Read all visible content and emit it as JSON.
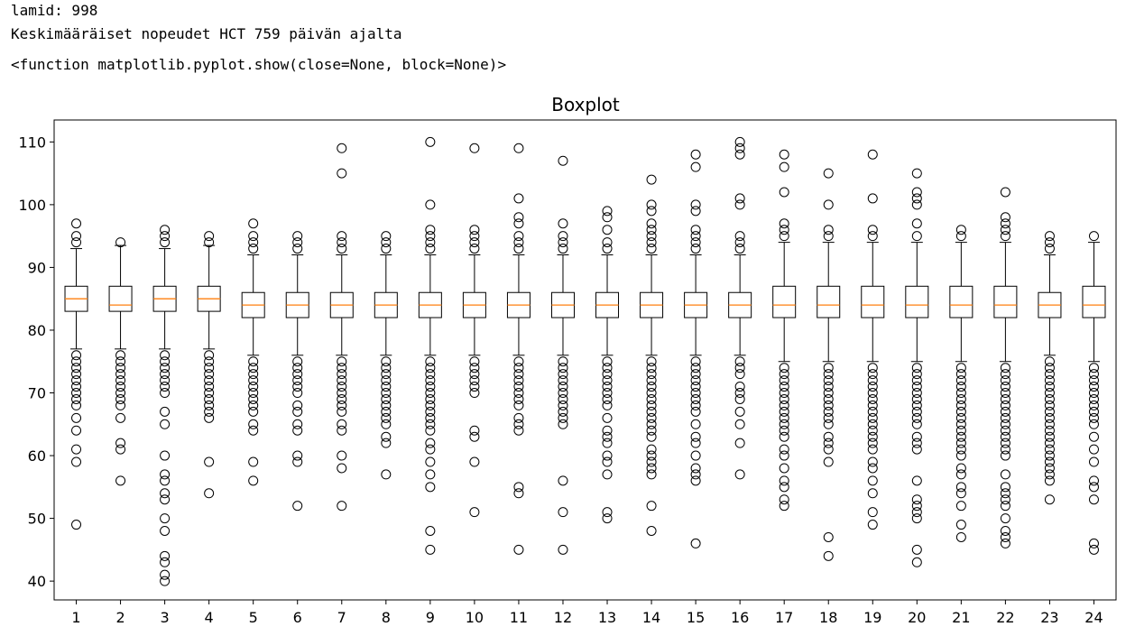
{
  "output": {
    "line1": "lamid: 998",
    "line2": "Keskimääräiset nopeudet HCT 759 päivän ajalta",
    "line3": "<function matplotlib.pyplot.show(close=None, block=None)>"
  },
  "colors": {
    "median": "#ff7f0e",
    "box": "#000000",
    "flier": "#000000"
  },
  "chart_data": {
    "type": "boxplot",
    "title": "Boxplot",
    "xlabel": "",
    "ylabel": "",
    "ylim": [
      37,
      113.5
    ],
    "yticks": [
      40,
      50,
      60,
      70,
      80,
      90,
      100,
      110
    ],
    "grid": false,
    "categories": [
      "1",
      "2",
      "3",
      "4",
      "5",
      "6",
      "7",
      "8",
      "9",
      "10",
      "11",
      "12",
      "13",
      "14",
      "15",
      "16",
      "17",
      "18",
      "19",
      "20",
      "21",
      "22",
      "23",
      "24"
    ],
    "boxes": [
      {
        "q1": 83,
        "median": 85,
        "q3": 87,
        "whislo": 77,
        "whishi": 93,
        "fliers": [
          97,
          95,
          94,
          76,
          75,
          74,
          73,
          72,
          71,
          70,
          69,
          68,
          66,
          64,
          61,
          59,
          49
        ]
      },
      {
        "q1": 83,
        "median": 84,
        "q3": 87,
        "whislo": 77,
        "whishi": 93.5,
        "fliers": [
          94,
          76,
          75,
          74,
          73,
          72,
          71,
          70,
          69,
          68,
          66,
          62,
          61,
          56
        ]
      },
      {
        "q1": 83,
        "median": 85,
        "q3": 87,
        "whislo": 77,
        "whishi": 93,
        "fliers": [
          96,
          95,
          94,
          76,
          75,
          74,
          73,
          72,
          71,
          70,
          67,
          65,
          60,
          57,
          56,
          54,
          53,
          50,
          48,
          44,
          43,
          41,
          40
        ]
      },
      {
        "q1": 83,
        "median": 85,
        "q3": 87,
        "whislo": 77,
        "whishi": 93.5,
        "fliers": [
          95,
          94,
          76,
          75,
          74,
          73,
          72,
          71,
          70,
          69,
          68,
          67,
          66,
          59,
          54
        ]
      },
      {
        "q1": 82,
        "median": 84,
        "q3": 86,
        "whislo": 76,
        "whishi": 92,
        "fliers": [
          97,
          95,
          94,
          93,
          75,
          74,
          73,
          72,
          71,
          70,
          69,
          68,
          67,
          65,
          64,
          59,
          56
        ]
      },
      {
        "q1": 82,
        "median": 84,
        "q3": 86,
        "whislo": 76,
        "whishi": 92,
        "fliers": [
          95,
          94,
          93,
          75,
          74,
          73,
          72,
          71,
          70,
          68,
          67,
          65,
          64,
          60,
          59,
          52
        ]
      },
      {
        "q1": 82,
        "median": 84,
        "q3": 86,
        "whislo": 76,
        "whishi": 92,
        "fliers": [
          109,
          105,
          95,
          94,
          93,
          75,
          74,
          73,
          72,
          71,
          70,
          69,
          68,
          67,
          65,
          64,
          60,
          58,
          52
        ]
      },
      {
        "q1": 82,
        "median": 84,
        "q3": 86,
        "whislo": 76,
        "whishi": 92,
        "fliers": [
          95,
          94,
          93,
          75,
          74,
          73,
          72,
          71,
          70,
          69,
          68,
          67,
          66,
          65,
          63,
          62,
          57
        ]
      },
      {
        "q1": 82,
        "median": 84,
        "q3": 86,
        "whislo": 76,
        "whishi": 92,
        "fliers": [
          110,
          100,
          96,
          95,
          94,
          93,
          75,
          74,
          73,
          72,
          71,
          70,
          69,
          68,
          67,
          66,
          65,
          64,
          62,
          61,
          59,
          57,
          55,
          48,
          45
        ]
      },
      {
        "q1": 82,
        "median": 84,
        "q3": 86,
        "whislo": 76,
        "whishi": 92,
        "fliers": [
          109,
          96,
          95,
          94,
          93,
          75,
          74,
          73,
          72,
          71,
          70,
          64,
          63,
          59,
          51
        ]
      },
      {
        "q1": 82,
        "median": 84,
        "q3": 86,
        "whislo": 76,
        "whishi": 92,
        "fliers": [
          109,
          101,
          98,
          97,
          95,
          94,
          93,
          75,
          74,
          73,
          72,
          71,
          70,
          69,
          68,
          66,
          65,
          64,
          55,
          54,
          45
        ]
      },
      {
        "q1": 82,
        "median": 84,
        "q3": 86,
        "whislo": 76,
        "whishi": 92,
        "fliers": [
          107,
          97,
          95,
          94,
          93,
          75,
          74,
          73,
          72,
          71,
          70,
          69,
          68,
          67,
          66,
          65,
          56,
          51,
          45
        ]
      },
      {
        "q1": 82,
        "median": 84,
        "q3": 86,
        "whislo": 76,
        "whishi": 92,
        "fliers": [
          99,
          98,
          96,
          94,
          93,
          75,
          74,
          73,
          72,
          71,
          70,
          69,
          68,
          66,
          64,
          63,
          62,
          60,
          59,
          57,
          51,
          50
        ]
      },
      {
        "q1": 82,
        "median": 84,
        "q3": 86,
        "whislo": 76,
        "whishi": 92,
        "fliers": [
          104,
          100,
          99,
          97,
          96,
          95,
          94,
          93,
          75,
          74,
          73,
          72,
          71,
          70,
          69,
          68,
          67,
          66,
          65,
          64,
          63,
          61,
          60,
          59,
          58,
          57,
          52,
          48
        ]
      },
      {
        "q1": 82,
        "median": 84,
        "q3": 86,
        "whislo": 76,
        "whishi": 92,
        "fliers": [
          108,
          106,
          100,
          99,
          96,
          95,
          94,
          93,
          75,
          74,
          73,
          72,
          71,
          70,
          69,
          68,
          67,
          65,
          63,
          62,
          60,
          58,
          57,
          56,
          46
        ]
      },
      {
        "q1": 82,
        "median": 84,
        "q3": 86,
        "whislo": 76,
        "whishi": 92,
        "fliers": [
          110,
          109,
          108,
          101,
          100,
          95,
          94,
          93,
          75,
          74,
          73,
          71,
          70,
          69,
          67,
          65,
          62,
          57
        ]
      },
      {
        "q1": 82,
        "median": 84,
        "q3": 87,
        "whislo": 75,
        "whishi": 94,
        "fliers": [
          108,
          106,
          102,
          97,
          96,
          95,
          74,
          73,
          72,
          71,
          70,
          69,
          68,
          67,
          66,
          65,
          64,
          63,
          61,
          60,
          58,
          56,
          55,
          53,
          52
        ]
      },
      {
        "q1": 82,
        "median": 84,
        "q3": 87,
        "whislo": 75,
        "whishi": 94,
        "fliers": [
          105,
          100,
          96,
          95,
          74,
          73,
          72,
          71,
          70,
          69,
          68,
          67,
          66,
          65,
          63,
          62,
          61,
          59,
          47,
          44
        ]
      },
      {
        "q1": 82,
        "median": 84,
        "q3": 87,
        "whislo": 75,
        "whishi": 94,
        "fliers": [
          108,
          101,
          96,
          95,
          74,
          73,
          72,
          71,
          70,
          69,
          68,
          67,
          66,
          65,
          64,
          63,
          62,
          61,
          59,
          58,
          56,
          54,
          51,
          49
        ]
      },
      {
        "q1": 82,
        "median": 84,
        "q3": 87,
        "whislo": 75,
        "whishi": 94,
        "fliers": [
          105,
          102,
          101,
          100,
          97,
          95,
          74,
          73,
          72,
          71,
          70,
          69,
          68,
          67,
          66,
          65,
          63,
          62,
          61,
          56,
          53,
          52,
          51,
          50,
          45,
          43
        ]
      },
      {
        "q1": 82,
        "median": 84,
        "q3": 87,
        "whislo": 75,
        "whishi": 94,
        "fliers": [
          96,
          95,
          74,
          73,
          72,
          71,
          70,
          69,
          68,
          67,
          66,
          65,
          64,
          63,
          62,
          61,
          60,
          58,
          57,
          55,
          54,
          52,
          49,
          47
        ]
      },
      {
        "q1": 82,
        "median": 84,
        "q3": 87,
        "whislo": 75,
        "whishi": 94,
        "fliers": [
          102,
          98,
          97,
          96,
          95,
          74,
          73,
          72,
          71,
          70,
          69,
          68,
          67,
          66,
          65,
          64,
          63,
          62,
          61,
          60,
          57,
          55,
          54,
          53,
          52,
          50,
          48,
          47,
          46
        ]
      },
      {
        "q1": 82,
        "median": 84,
        "q3": 86,
        "whislo": 76,
        "whishi": 92,
        "fliers": [
          95,
          94,
          93,
          75,
          74,
          73,
          72,
          71,
          70,
          69,
          68,
          67,
          66,
          65,
          64,
          63,
          62,
          61,
          60,
          59,
          58,
          57,
          56,
          53
        ]
      },
      {
        "q1": 82,
        "median": 84,
        "q3": 87,
        "whislo": 75,
        "whishi": 94,
        "fliers": [
          95,
          74,
          73,
          72,
          71,
          70,
          69,
          68,
          67,
          66,
          65,
          63,
          61,
          59,
          56,
          55,
          53,
          46,
          45
        ]
      }
    ]
  }
}
